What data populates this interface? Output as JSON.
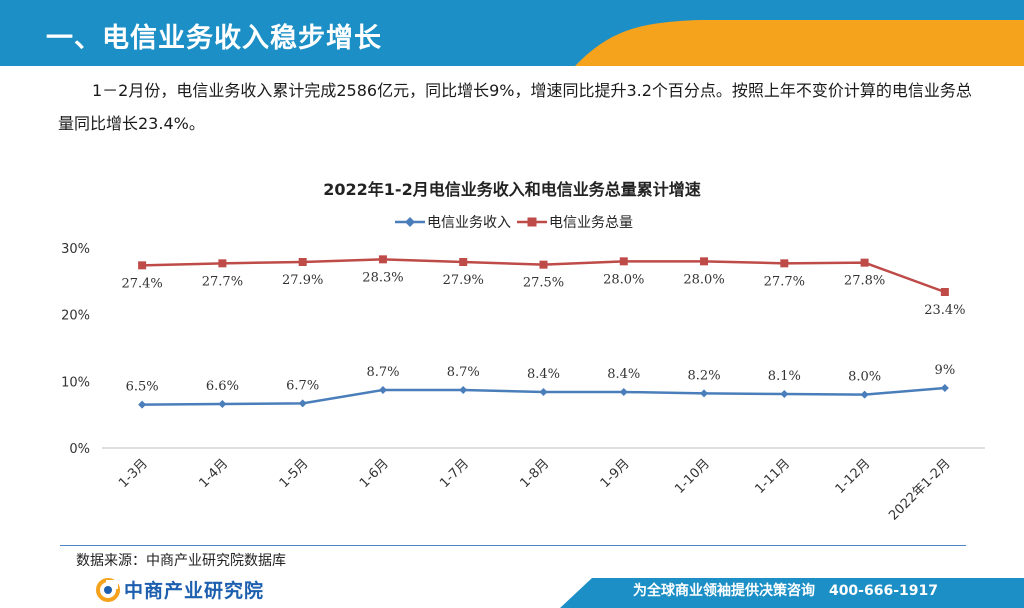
{
  "header": {
    "title": "一、电信业务收入稳步增长"
  },
  "summary": {
    "text": "1－2月份，电信业务收入累计完成2586亿元，同比增长9%，增速同比提升3.2个百分点。按照上年不变价计算的电信业务总量同比增长23.4%。"
  },
  "colors": {
    "header_blue": "#1c8fc6",
    "header_orange": "#f5a21c",
    "series_revenue": "#4a7ebb",
    "series_volume": "#be4b48"
  },
  "chart_data": {
    "type": "line",
    "title": "2022年1-2月电信业务收入和电信业务总量累计增速",
    "categories": [
      "1-3月",
      "1-4月",
      "1-5月",
      "1-6月",
      "1-7月",
      "1-8月",
      "1-9月",
      "1-10月",
      "1-11月",
      "1-12月",
      "2022年1-2月"
    ],
    "series": [
      {
        "name": "电信业务收入",
        "values": [
          6.5,
          6.6,
          6.7,
          8.7,
          8.7,
          8.4,
          8.4,
          8.2,
          8.1,
          8.0,
          9
        ],
        "labels": [
          "6.5%",
          "6.6%",
          "6.7%",
          "8.7%",
          "8.7%",
          "8.4%",
          "8.4%",
          "8.2%",
          "8.1%",
          "8.0%",
          "9%"
        ],
        "color": "#4a7ebb",
        "marker": "diamond"
      },
      {
        "name": "电信业务总量",
        "values": [
          27.4,
          27.7,
          27.9,
          28.3,
          27.9,
          27.5,
          28.0,
          28.0,
          27.7,
          27.8,
          23.4
        ],
        "labels": [
          "27.4%",
          "27.7%",
          "27.9%",
          "28.3%",
          "27.9%",
          "27.5%",
          "28.0%",
          "28.0%",
          "27.7%",
          "27.8%",
          "23.4%"
        ],
        "color": "#be4b48",
        "marker": "square"
      }
    ],
    "yticks": [
      "30%",
      "20%",
      "10%",
      "0%"
    ],
    "ytick_values": [
      30,
      20,
      10,
      0
    ],
    "ylim": [
      0,
      30
    ],
    "legend_position": "top-center",
    "grid": false
  },
  "source": "数据来源：中商产业研究院数据库",
  "footer": {
    "logo_text": "中商产业研究院",
    "slogan": "为全球商业领袖提供决策咨询　400-666-1917"
  }
}
